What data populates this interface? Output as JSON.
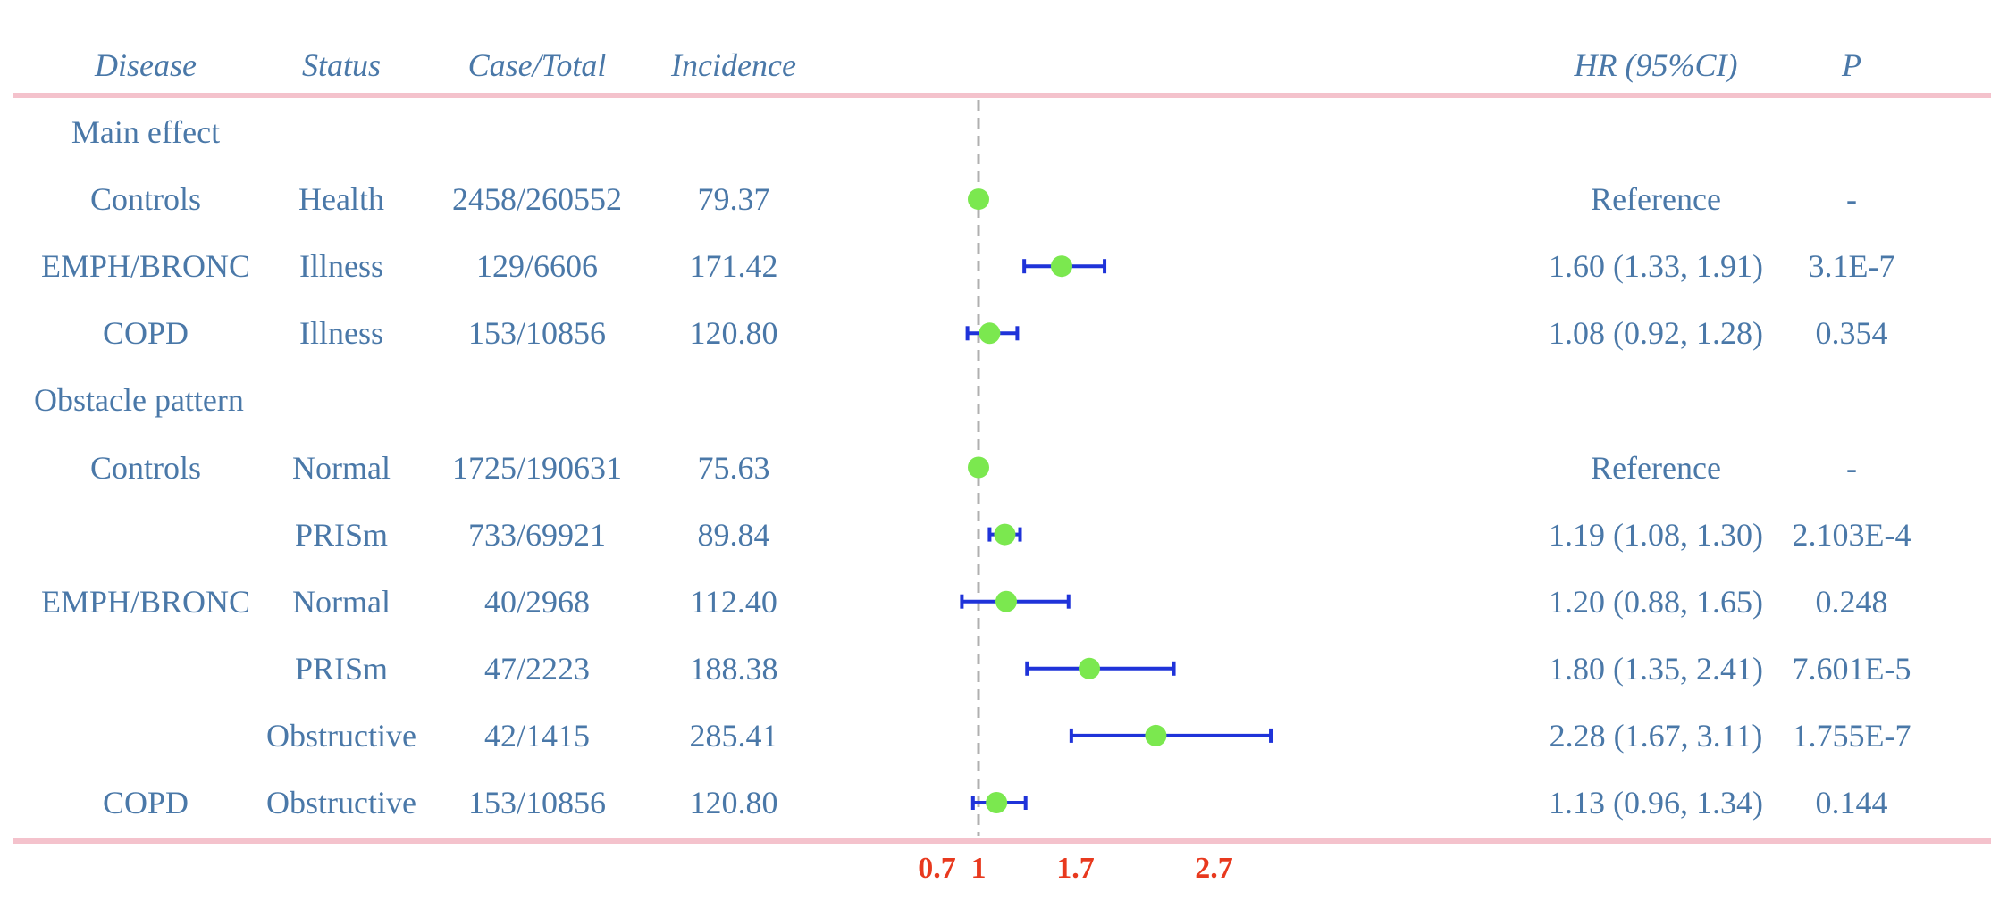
{
  "colors": {
    "text": "#4a78a8",
    "rule": "#f4c2cc",
    "tick": "#e8391e",
    "ci": "#1f33d9",
    "point": "#7be84f",
    "refline": "#b0b0b0"
  },
  "headers": {
    "disease": "Disease",
    "status": "Status",
    "case_total": "Case/Total",
    "incidence": "Incidence",
    "hr": "HR (95%CI)",
    "p": "P"
  },
  "rows": [
    {
      "disease": "Main effect",
      "status": "",
      "case_total": "",
      "incidence": "",
      "hr_text": "",
      "p": ""
    },
    {
      "disease": "Controls",
      "status": "Health",
      "case_total": "2458/260552",
      "incidence": "79.37",
      "hr_text": "Reference",
      "p": "-"
    },
    {
      "disease": "EMPH/BRONC",
      "status": "Illness",
      "case_total": "129/6606",
      "incidence": "171.42",
      "hr_text": "1.60 (1.33, 1.91)",
      "p": "3.1E-7"
    },
    {
      "disease": "COPD",
      "status": "Illness",
      "case_total": "153/10856",
      "incidence": "120.80",
      "hr_text": "1.08 (0.92, 1.28)",
      "p": "0.354"
    },
    {
      "disease": "Obstacle pattern",
      "status": "",
      "case_total": "",
      "incidence": "",
      "hr_text": "",
      "p": ""
    },
    {
      "disease": "Controls",
      "status": "Normal",
      "case_total": "1725/190631",
      "incidence": "75.63",
      "hr_text": "Reference",
      "p": "-"
    },
    {
      "disease": "",
      "status": "PRISm",
      "case_total": "733/69921",
      "incidence": "89.84",
      "hr_text": "1.19 (1.08, 1.30)",
      "p": "2.103E-4"
    },
    {
      "disease": "EMPH/BRONC",
      "status": "Normal",
      "case_total": "40/2968",
      "incidence": "112.40",
      "hr_text": "1.20 (0.88, 1.65)",
      "p": "0.248"
    },
    {
      "disease": "",
      "status": "PRISm",
      "case_total": "47/2223",
      "incidence": "188.38",
      "hr_text": "1.80 (1.35, 2.41)",
      "p": "7.601E-5"
    },
    {
      "disease": "",
      "status": "Obstructive",
      "case_total": "42/1415",
      "incidence": "285.41",
      "hr_text": "2.28 (1.67, 3.11)",
      "p": "1.755E-7"
    },
    {
      "disease": "COPD",
      "status": "Obstructive",
      "case_total": "153/10856",
      "incidence": "120.80",
      "hr_text": "1.13 (0.96, 1.34)",
      "p": "0.144"
    }
  ],
  "chart_data": {
    "type": "forest",
    "title": "",
    "xlabel": "",
    "ylabel": "",
    "reference_line": 1,
    "xlim": [
      0.6,
      3.25
    ],
    "xticks": [
      0.7,
      1,
      1.7,
      2.7
    ],
    "xtick_labels": [
      "0.7",
      "1",
      "1.7",
      "2.7"
    ],
    "points": [
      {
        "row": 1,
        "label": "Controls Health",
        "hr": 1.0,
        "lo": null,
        "hi": null
      },
      {
        "row": 2,
        "label": "EMPH/BRONC Illness",
        "hr": 1.6,
        "lo": 1.33,
        "hi": 1.91
      },
      {
        "row": 3,
        "label": "COPD Illness",
        "hr": 1.08,
        "lo": 0.92,
        "hi": 1.28
      },
      {
        "row": 5,
        "label": "Controls Normal",
        "hr": 1.0,
        "lo": null,
        "hi": null
      },
      {
        "row": 6,
        "label": "PRISm",
        "hr": 1.19,
        "lo": 1.08,
        "hi": 1.3
      },
      {
        "row": 7,
        "label": "EMPH/BRONC Normal",
        "hr": 1.2,
        "lo": 0.88,
        "hi": 1.65
      },
      {
        "row": 8,
        "label": "EMPH/BRONC PRISm",
        "hr": 1.8,
        "lo": 1.35,
        "hi": 2.41
      },
      {
        "row": 9,
        "label": "EMPH/BRONC Obstructive",
        "hr": 2.28,
        "lo": 1.67,
        "hi": 3.11
      },
      {
        "row": 10,
        "label": "COPD Obstructive",
        "hr": 1.13,
        "lo": 0.96,
        "hi": 1.34
      }
    ]
  }
}
